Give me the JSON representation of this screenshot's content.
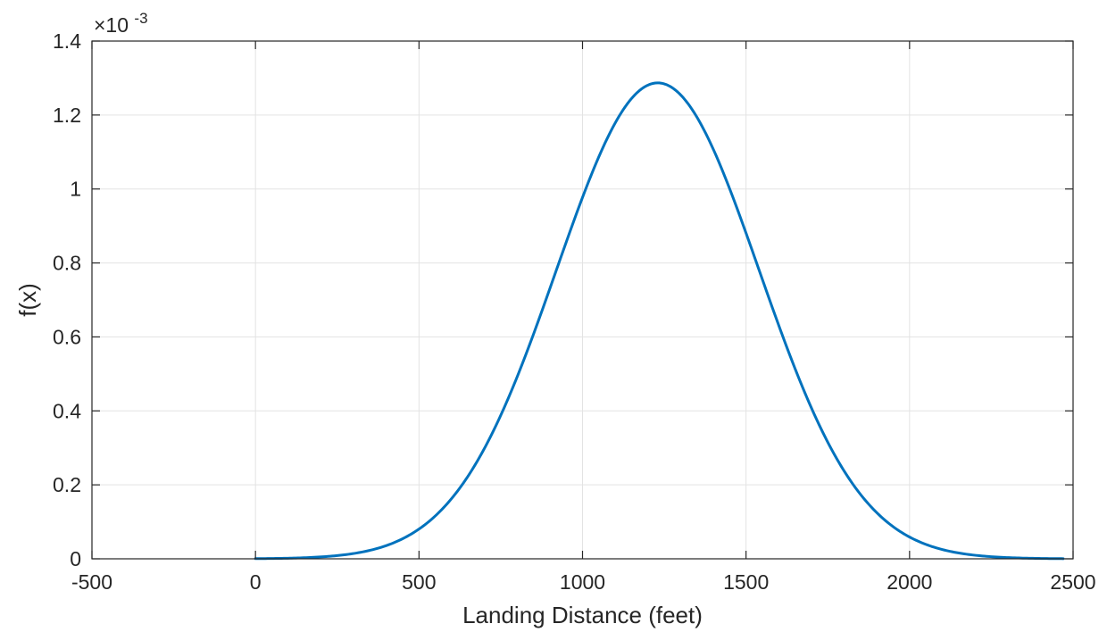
{
  "chart_data": {
    "type": "line",
    "title": "",
    "xlabel": "Landing Distance (feet)",
    "ylabel": "f(x)",
    "y_exponent_label": "×10",
    "y_exponent_power": "-3",
    "y_scale_factor": 0.001,
    "xlim": [
      -500,
      2500
    ],
    "ylim": [
      0,
      1.4
    ],
    "x_ticks": [
      -500,
      0,
      500,
      1000,
      1500,
      2000,
      2500
    ],
    "x_tick_labels": [
      "-500",
      "0",
      "500",
      "1000",
      "1500",
      "2000",
      "2500"
    ],
    "y_ticks": [
      0,
      0.2,
      0.4,
      0.6,
      0.8,
      1.0,
      1.2,
      1.4
    ],
    "y_tick_labels": [
      "0",
      "0.2",
      "0.4",
      "0.6",
      "0.8",
      "1",
      "1.2",
      "1.4"
    ],
    "grid": true,
    "legend": "none",
    "series": [
      {
        "color": "#0072bd",
        "distribution": "normal",
        "mean": 1230,
        "std": 310,
        "x_min": 0,
        "x_max": 2470
      }
    ]
  }
}
